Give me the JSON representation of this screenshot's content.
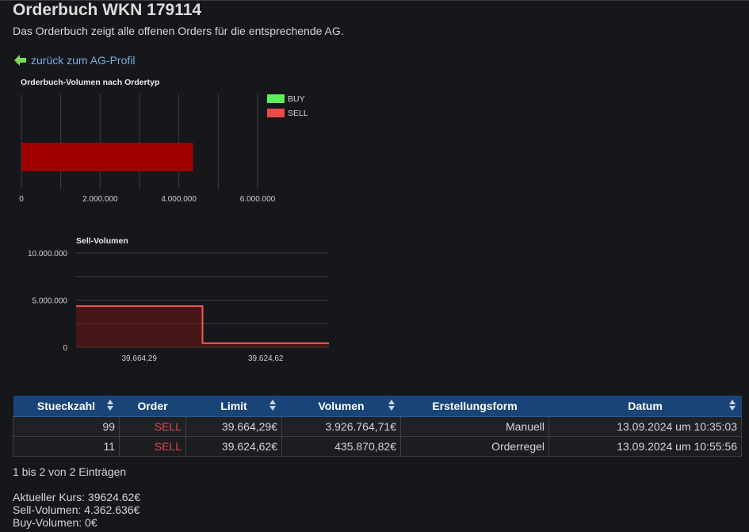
{
  "page": {
    "title": "Orderbuch WKN 179114",
    "subtitle": "Das Orderbuch zeigt alle offenen Orders für die entsprechende AG."
  },
  "back_link": {
    "label": "zurück zum AG-Profil"
  },
  "colors": {
    "buy": "#5af05a",
    "sell": "#f04848",
    "sell_bar": "#a00000",
    "header": "#194478",
    "link": "#7aaee0"
  },
  "chart_data": [
    {
      "type": "bar",
      "orientation": "horizontal",
      "title": "Orderbuch-Volumen nach Ordertyp",
      "series": [
        {
          "name": "BUY",
          "value": 0
        },
        {
          "name": "SELL",
          "value": 4362636
        }
      ],
      "xlim": [
        0,
        6000000
      ],
      "tick_values": [
        0,
        2000000,
        4000000,
        6000000
      ],
      "tick_labels": [
        "0",
        "2.000.000",
        "4.000.000",
        "6.000.000"
      ],
      "legend_position": "top-right",
      "grid": true
    },
    {
      "type": "area",
      "step": true,
      "title": "Sell-Volumen",
      "x": [
        "39.664,29",
        "39.624,62"
      ],
      "y": [
        4362636,
        435870
      ],
      "ylim": [
        0,
        10000000
      ],
      "y_tick_values": [
        0,
        5000000,
        10000000
      ],
      "y_tick_labels": [
        "0",
        "5.000.000",
        "10.000.000"
      ],
      "grid": true
    }
  ],
  "table": {
    "columns": [
      "Stueckzahl",
      "Order",
      "Limit",
      "Volumen",
      "Erstellungsform",
      "Datum"
    ],
    "rows": [
      {
        "stueckzahl": "99",
        "order": "SELL",
        "limit": "39.664,29€",
        "volumen": "3.926.764,71€",
        "form": "Manuell",
        "datum": "13.09.2024 um 10:35:03"
      },
      {
        "stueckzahl": "11",
        "order": "SELL",
        "limit": "39.624,62€",
        "volumen": "435.870,82€",
        "form": "Orderregel",
        "datum": "13.09.2024 um 10:55:56"
      }
    ]
  },
  "summary": {
    "entries": "1 bis 2 von 2 Einträgen",
    "kurs": "Aktueller Kurs: 39624.62€",
    "sell_volumen": "Sell-Volumen: 4.362.636€",
    "buy_volumen": "Buy-Volumen: 0€"
  }
}
